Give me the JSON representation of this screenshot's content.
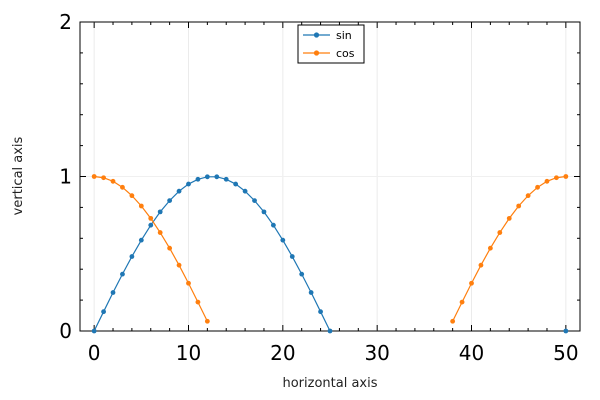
{
  "chart_data": {
    "type": "line",
    "xlabel": "horizontal axis",
    "ylabel": "vertical axis",
    "xlim": [
      -1.5,
      51.5
    ],
    "ylim": [
      0,
      2
    ],
    "x_ticks": [
      0,
      10,
      20,
      30,
      40,
      50
    ],
    "x_tick_labels": [
      "0",
      "10",
      "20",
      "30",
      "40",
      "50"
    ],
    "y_ticks": [
      0,
      1,
      2
    ],
    "y_tick_labels": [
      "0",
      "1",
      "2"
    ],
    "grid": "vertical at major x ticks (faint)",
    "legend_position": "top-center",
    "series": [
      {
        "name": "sin",
        "color": "#1f77b4",
        "x": [
          0,
          1,
          2,
          3,
          4,
          5,
          6,
          7,
          8,
          9,
          10,
          11,
          12,
          13,
          14,
          15,
          16,
          17,
          18,
          19,
          20,
          21,
          22,
          23,
          24,
          25,
          50
        ],
        "y": [
          0,
          0.125,
          0.249,
          0.368,
          0.482,
          0.588,
          0.685,
          0.771,
          0.844,
          0.905,
          0.951,
          0.982,
          0.998,
          0.998,
          0.982,
          0.951,
          0.905,
          0.844,
          0.771,
          0.685,
          0.588,
          0.482,
          0.368,
          0.249,
          0.125,
          0,
          0
        ]
      },
      {
        "name": "cos",
        "color": "#ff7f0e",
        "x": [
          0,
          1,
          2,
          3,
          4,
          5,
          6,
          7,
          8,
          9,
          10,
          11,
          12,
          38,
          39,
          40,
          41,
          42,
          43,
          44,
          45,
          46,
          47,
          48,
          49,
          50
        ],
        "y": [
          1,
          0.992,
          0.969,
          0.93,
          0.876,
          0.809,
          0.729,
          0.637,
          0.536,
          0.426,
          0.309,
          0.187,
          0.063,
          0.063,
          0.187,
          0.309,
          0.426,
          0.536,
          0.637,
          0.729,
          0.809,
          0.876,
          0.93,
          0.969,
          0.992,
          1
        ]
      }
    ]
  }
}
